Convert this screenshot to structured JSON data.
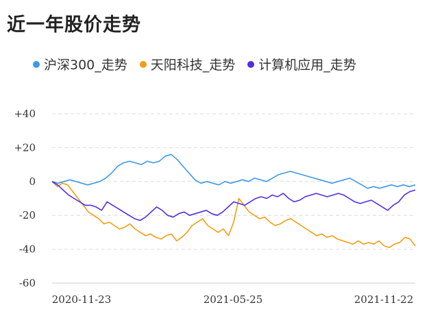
{
  "title": "近一年股价走势",
  "chart_data": {
    "type": "line",
    "y_ticks": [
      "+40",
      "+20",
      "0",
      "-20",
      "-40",
      "-60"
    ],
    "y_values": [
      40,
      20,
      0,
      -20,
      -40,
      -60
    ],
    "ylim": [
      -60,
      40
    ],
    "x_tick_labels": [
      "2020-11-23",
      "2021-05-25",
      "2021-11-22"
    ],
    "grid": true,
    "legend_position": "top",
    "series": [
      {
        "name": "沪深300_走势",
        "color": "#3d98e8",
        "values": [
          0,
          -1,
          0,
          1,
          0,
          -1,
          -2,
          -1,
          0,
          2,
          5,
          9,
          11,
          12,
          11,
          10,
          12,
          11,
          12,
          15,
          16,
          13,
          9,
          5,
          1,
          -1,
          0,
          -1,
          -2,
          0,
          -1,
          0,
          1,
          0,
          2,
          1,
          0,
          2,
          4,
          5,
          6,
          5,
          4,
          3,
          2,
          1,
          0,
          -1,
          0,
          1,
          2,
          0,
          -2,
          -4,
          -3,
          -4,
          -3,
          -2,
          -3,
          -2,
          -3,
          -2
        ]
      },
      {
        "name": "天阳科技_走势",
        "color": "#f39c12",
        "values": [
          0,
          -3,
          -1,
          -2,
          -6,
          -10,
          -14,
          -18,
          -20,
          -22,
          -25,
          -24,
          -26,
          -28,
          -27,
          -25,
          -28,
          -30,
          -32,
          -31,
          -33,
          -34,
          -32,
          -31,
          -35,
          -33,
          -30,
          -26,
          -24,
          -22,
          -26,
          -28,
          -30,
          -28,
          -32,
          -24,
          -10,
          -14,
          -18,
          -20,
          -22,
          -21,
          -24,
          -26,
          -25,
          -23,
          -22,
          -24,
          -26,
          -28,
          -30,
          -32,
          -31,
          -33,
          -32,
          -34,
          -35,
          -36,
          -37,
          -35,
          -37,
          -36,
          -37,
          -35,
          -38,
          -39,
          -37,
          -36,
          -33,
          -34,
          -38
        ]
      },
      {
        "name": "计算机应用_走势",
        "color": "#4d2fe6",
        "values": [
          0,
          -2,
          -5,
          -8,
          -10,
          -12,
          -14,
          -14,
          -15,
          -17,
          -12,
          -14,
          -16,
          -18,
          -20,
          -22,
          -23,
          -21,
          -18,
          -15,
          -17,
          -20,
          -21,
          -19,
          -18,
          -20,
          -19,
          -18,
          -17,
          -19,
          -20,
          -18,
          -15,
          -12,
          -13,
          -14,
          -12,
          -10,
          -9,
          -10,
          -8,
          -9,
          -7,
          -10,
          -12,
          -11,
          -9,
          -8,
          -7,
          -8,
          -9,
          -8,
          -7,
          -8,
          -10,
          -12,
          -13,
          -12,
          -11,
          -13,
          -15,
          -17,
          -14,
          -12,
          -8,
          -6,
          -5
        ]
      }
    ]
  }
}
